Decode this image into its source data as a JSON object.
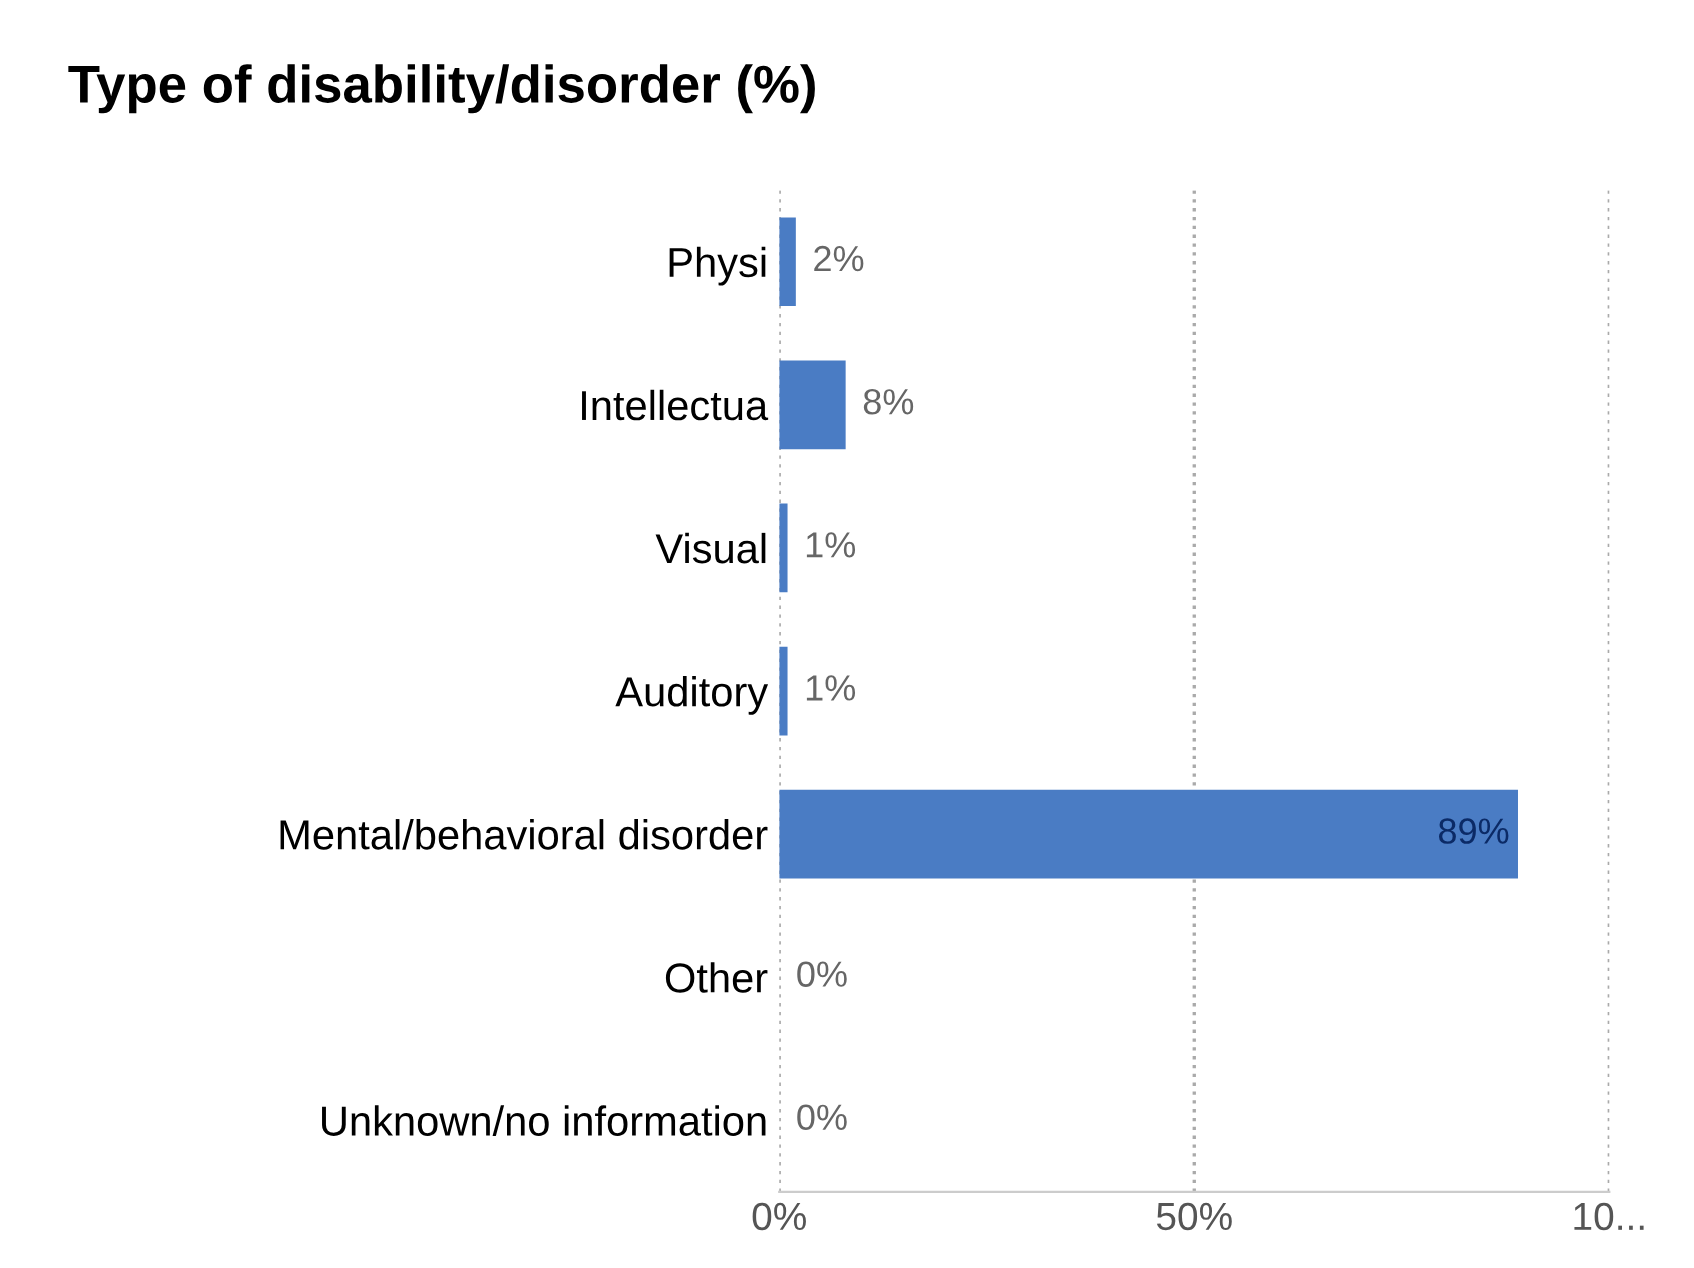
{
  "chart_data": {
    "type": "bar",
    "orientation": "horizontal",
    "title": "Type of disability/disorder (%)",
    "categories": [
      "Physi",
      "Intellectua",
      "Visual",
      "Auditory",
      "Mental/behavioral disorder",
      "Other",
      "Unknown/no information"
    ],
    "values": [
      2,
      8,
      1,
      1,
      89,
      0,
      0
    ],
    "value_labels": [
      "2%",
      "8%",
      "1%",
      "1%",
      "89%",
      "0%",
      "0%"
    ],
    "color": "#4a7cc4",
    "xlim": [
      0,
      100
    ],
    "xticks": [
      {
        "value": 0,
        "label": "0%"
      },
      {
        "value": 50,
        "label": "50%"
      },
      {
        "value": 100,
        "label": "10..."
      }
    ],
    "grid": "x"
  }
}
